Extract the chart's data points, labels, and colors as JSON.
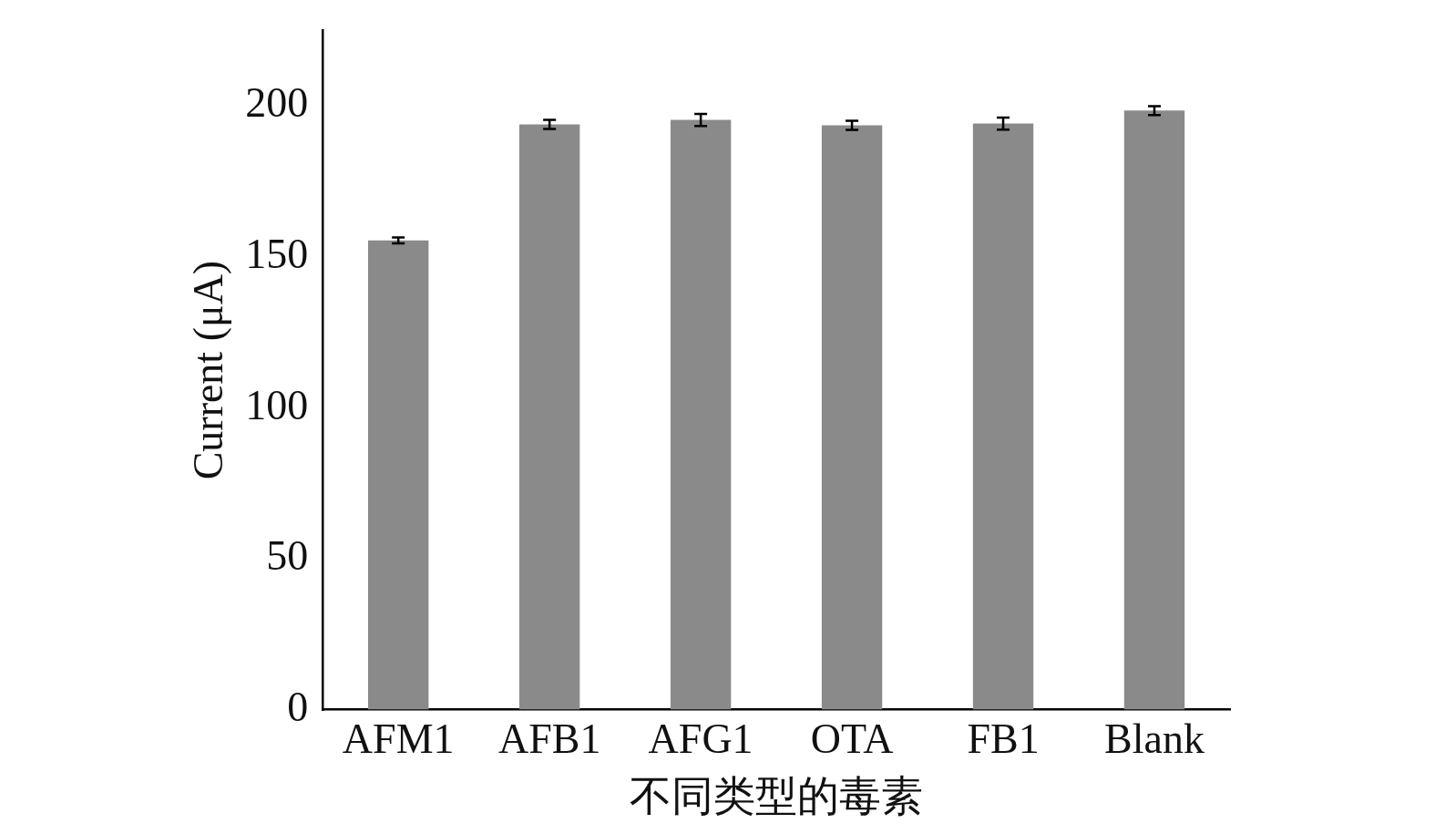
{
  "chart_data": {
    "type": "bar",
    "xlabel": "不同类型的毒素",
    "ylabel": "Current (μA)",
    "categories": [
      "AFM1",
      "AFB1",
      "AFG1",
      "OTA",
      "FB1",
      "Blank"
    ],
    "values": [
      155.5,
      193.9,
      195.4,
      193.6,
      194.2,
      198.5
    ],
    "errors": [
      1,
      1.5,
      2,
      1.5,
      2,
      1.5
    ],
    "color": "#8a8a8a",
    "ylim": [
      0,
      225
    ],
    "yticks": [
      0,
      50,
      100,
      150,
      200
    ],
    "grid": false,
    "legend": false
  }
}
